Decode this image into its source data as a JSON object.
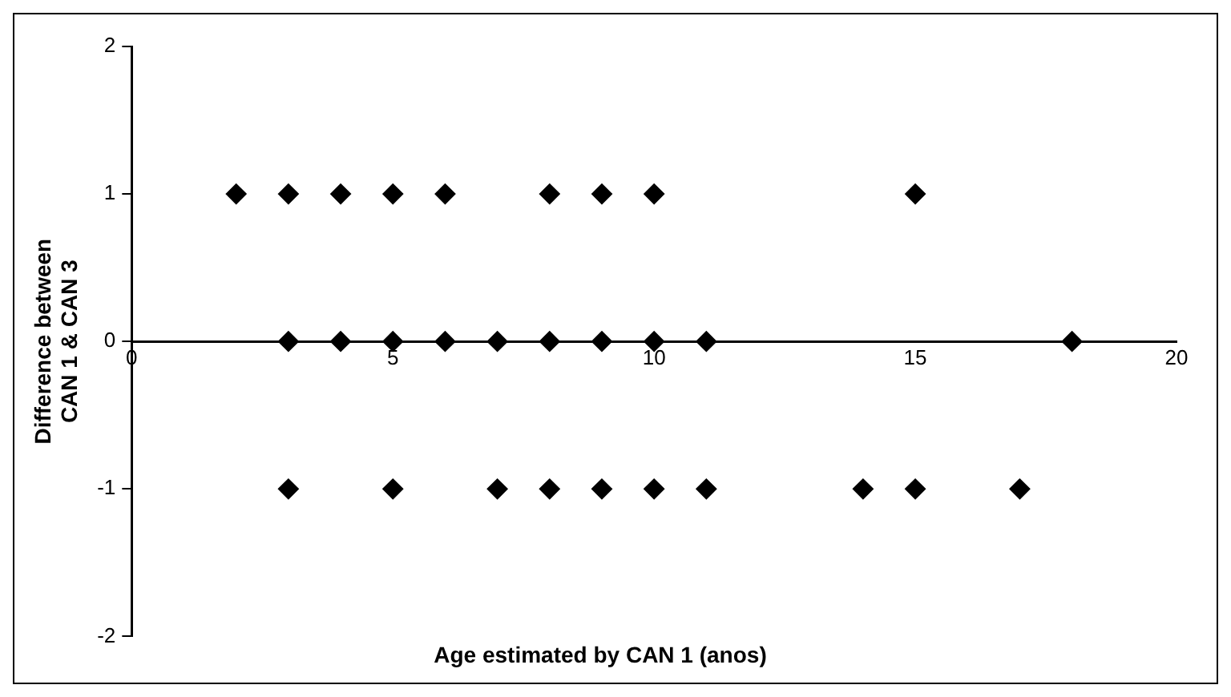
{
  "chart_data": {
    "type": "scatter",
    "xlabel": "Age estimated by CAN 1 (anos)",
    "ylabel": "Difference between\nCAN 1 & CAN 3",
    "x": [
      2,
      3,
      4,
      5,
      6,
      8,
      9,
      10,
      15,
      3,
      4,
      5,
      6,
      7,
      8,
      9,
      10,
      11,
      18,
      3,
      5,
      7,
      8,
      9,
      10,
      11,
      14,
      15,
      17
    ],
    "values": [
      1,
      1,
      1,
      1,
      1,
      1,
      1,
      1,
      1,
      0,
      0,
      0,
      0,
      0,
      0,
      0,
      0,
      0,
      0,
      -1,
      -1,
      -1,
      -1,
      -1,
      -1,
      -1,
      -1,
      -1,
      -1
    ],
    "color": "#000000",
    "marker": "diamond",
    "xlim": [
      0,
      20
    ],
    "xticks": [
      0,
      5,
      10,
      15,
      20
    ],
    "ylim": [
      -2,
      2
    ],
    "yticks": [
      -2,
      -1,
      0,
      1,
      2
    ],
    "grid": false,
    "legend": false
  }
}
